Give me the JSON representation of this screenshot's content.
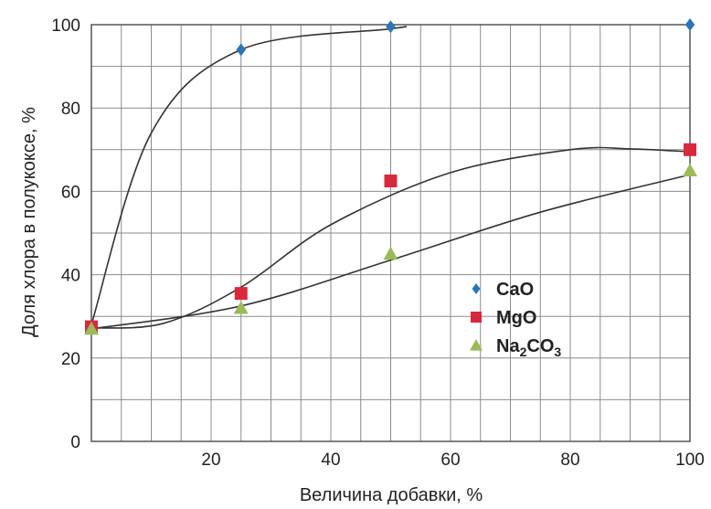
{
  "chart_data": {
    "type": "scatter",
    "xlabel": "Величина добавки, %",
    "ylabel": "Доля хлора в полукоксе, %",
    "xlim": [
      0,
      100
    ],
    "ylim": [
      0,
      100
    ],
    "xticks": [
      20,
      40,
      60,
      80,
      100
    ],
    "yticks": [
      0,
      20,
      40,
      60,
      80,
      100
    ],
    "x_minor_grid_step": 5,
    "y_minor_grid_step": 10,
    "grid": true,
    "legend_position": "center-right",
    "series": [
      {
        "name": "CaO",
        "marker": "diamond",
        "color": "#2e75b6",
        "points": [
          [
            25,
            94
          ],
          [
            50,
            99.5
          ],
          [
            100,
            100
          ]
        ],
        "trend": [
          [
            0,
            28
          ],
          [
            10,
            74
          ],
          [
            25,
            94
          ],
          [
            50,
            99
          ],
          [
            52,
            99.4
          ]
        ]
      },
      {
        "name": "MgO",
        "marker": "square",
        "color": "#d8283c",
        "points": [
          [
            0,
            27.5
          ],
          [
            25,
            35.5
          ],
          [
            50,
            62.5
          ],
          [
            100,
            70
          ]
        ],
        "trend": [
          [
            0,
            27.2
          ],
          [
            12,
            28.3
          ],
          [
            25,
            37
          ],
          [
            40,
            52
          ],
          [
            60,
            64.5
          ],
          [
            80,
            70
          ],
          [
            90,
            70.2
          ],
          [
            100,
            69.5
          ]
        ]
      },
      {
        "name": "Na2CO3",
        "marker": "triangle",
        "color": "#9bbb59",
        "points": [
          [
            0,
            27
          ],
          [
            25,
            32
          ],
          [
            50,
            45
          ],
          [
            100,
            65
          ]
        ],
        "trend": [
          [
            0,
            27
          ],
          [
            25,
            32.5
          ],
          [
            50,
            43.5
          ],
          [
            75,
            55
          ],
          [
            100,
            64
          ]
        ]
      }
    ],
    "legend": [
      {
        "label": "CaO",
        "main": "CaO",
        "sub": "",
        "tail": ""
      },
      {
        "label": "MgO",
        "main": "MgO",
        "sub": "",
        "tail": ""
      },
      {
        "label": "Na2CO3",
        "main": "Na",
        "sub": "2",
        "tail": "CO",
        "sub2": "3"
      }
    ],
    "colors": {
      "grid": "#8c8c8c",
      "axis": "#555555",
      "trend": "#333333"
    }
  }
}
